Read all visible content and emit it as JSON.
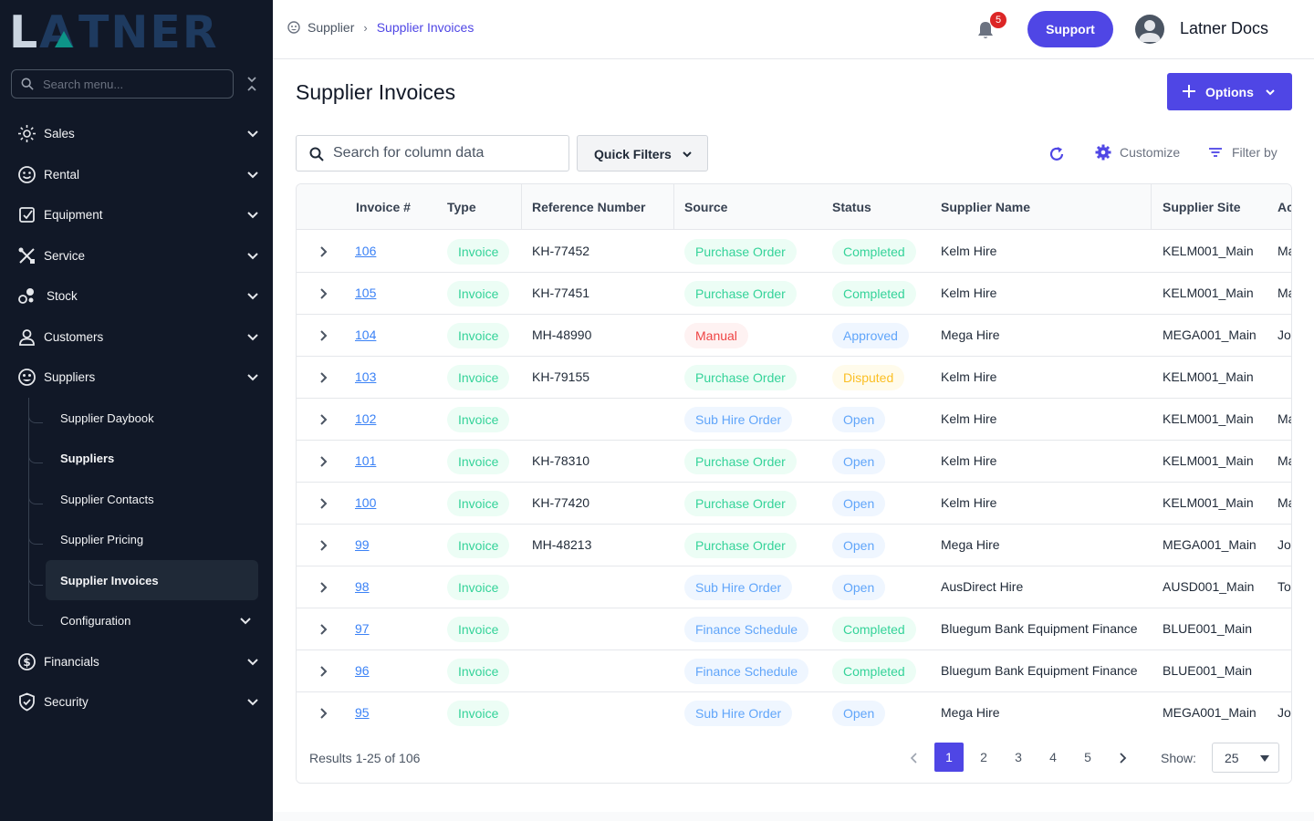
{
  "sidebar": {
    "logo_text": "LATNER",
    "search_placeholder": "Search menu...",
    "items": [
      {
        "label": "Sales",
        "icon": "sun-icon"
      },
      {
        "label": "Rental",
        "icon": "smile-icon"
      },
      {
        "label": "Equipment",
        "icon": "equipment-icon"
      },
      {
        "label": "Service",
        "icon": "tools-icon"
      },
      {
        "label": "Stock",
        "icon": "stock-icon"
      },
      {
        "label": "Customers",
        "icon": "user-icon"
      },
      {
        "label": "Suppliers",
        "icon": "suppliers-icon"
      },
      {
        "label": "Financials",
        "icon": "financials-icon"
      },
      {
        "label": "Security",
        "icon": "shield-icon"
      }
    ],
    "sub_items": [
      {
        "label": "Supplier Daybook"
      },
      {
        "label": "Suppliers"
      },
      {
        "label": "Supplier Contacts"
      },
      {
        "label": "Supplier Pricing"
      },
      {
        "label": "Supplier Invoices"
      },
      {
        "label": "Configuration"
      }
    ]
  },
  "header": {
    "breadcrumb": [
      "Supplier",
      "Supplier Invoices"
    ],
    "notification_count": "5",
    "support_label": "Support",
    "user_name": "Latner Docs"
  },
  "main": {
    "title": "Supplier Invoices",
    "options_label": "Options",
    "search_placeholder": "Search for column data",
    "quick_filters_label": "Quick Filters",
    "customize_label": "Customize",
    "filter_by_label": "Filter by"
  },
  "table": {
    "columns": [
      "Invoice #",
      "Type",
      "Reference Number",
      "Source",
      "Status",
      "Supplier Name",
      "Supplier Site",
      "Ac"
    ],
    "rows": [
      {
        "invoice": "106",
        "type": "Invoice",
        "ref": "KH-77452",
        "source": "Purchase Order",
        "status": "Completed",
        "supplier": "Kelm Hire",
        "site": "KELM001_Main",
        "extra": "Ma"
      },
      {
        "invoice": "105",
        "type": "Invoice",
        "ref": "KH-77451",
        "source": "Purchase Order",
        "status": "Completed",
        "supplier": "Kelm Hire",
        "site": "KELM001_Main",
        "extra": "Ma"
      },
      {
        "invoice": "104",
        "type": "Invoice",
        "ref": "MH-48990",
        "source": "Manual",
        "status": "Approved",
        "supplier": "Mega Hire",
        "site": "MEGA001_Main",
        "extra": "Jo"
      },
      {
        "invoice": "103",
        "type": "Invoice",
        "ref": "KH-79155",
        "source": "Purchase Order",
        "status": "Disputed",
        "supplier": "Kelm Hire",
        "site": "KELM001_Main",
        "extra": ""
      },
      {
        "invoice": "102",
        "type": "Invoice",
        "ref": "",
        "source": "Sub Hire Order",
        "status": "Open",
        "supplier": "Kelm Hire",
        "site": "KELM001_Main",
        "extra": "Ma"
      },
      {
        "invoice": "101",
        "type": "Invoice",
        "ref": "KH-78310",
        "source": "Purchase Order",
        "status": "Open",
        "supplier": "Kelm Hire",
        "site": "KELM001_Main",
        "extra": "Ma"
      },
      {
        "invoice": "100",
        "type": "Invoice",
        "ref": "KH-77420",
        "source": "Purchase Order",
        "status": "Open",
        "supplier": "Kelm Hire",
        "site": "KELM001_Main",
        "extra": "Ma"
      },
      {
        "invoice": "99",
        "type": "Invoice",
        "ref": "MH-48213",
        "source": "Purchase Order",
        "status": "Open",
        "supplier": "Mega Hire",
        "site": "MEGA001_Main",
        "extra": "Jo"
      },
      {
        "invoice": "98",
        "type": "Invoice",
        "ref": "",
        "source": "Sub Hire Order",
        "status": "Open",
        "supplier": "AusDirect Hire",
        "site": "AUSD001_Main",
        "extra": "To"
      },
      {
        "invoice": "97",
        "type": "Invoice",
        "ref": "",
        "source": "Finance Schedule",
        "status": "Completed",
        "supplier": "Bluegum Bank Equipment Finance",
        "site": "BLUE001_Main",
        "extra": ""
      },
      {
        "invoice": "96",
        "type": "Invoice",
        "ref": "",
        "source": "Finance Schedule",
        "status": "Completed",
        "supplier": "Bluegum Bank Equipment Finance",
        "site": "BLUE001_Main",
        "extra": ""
      },
      {
        "invoice": "95",
        "type": "Invoice",
        "ref": "",
        "source": "Sub Hire Order",
        "status": "Open",
        "supplier": "Mega Hire",
        "site": "MEGA001_Main",
        "extra": "Jo"
      }
    ]
  },
  "footer": {
    "results_text": "Results 1-25 of 106",
    "pages": [
      "1",
      "2",
      "3",
      "4",
      "5"
    ],
    "active_page": "1",
    "show_label": "Show:",
    "page_size": "25"
  },
  "colors": {
    "sidebar_bg": "#111827",
    "accent": "#4f46e5",
    "link": "#3b82f6",
    "green_pill_text": "#34d399",
    "blue_pill_text": "#60a5fa",
    "red_pill_text": "#ef4444",
    "amber_pill_text": "#fbbf24"
  }
}
